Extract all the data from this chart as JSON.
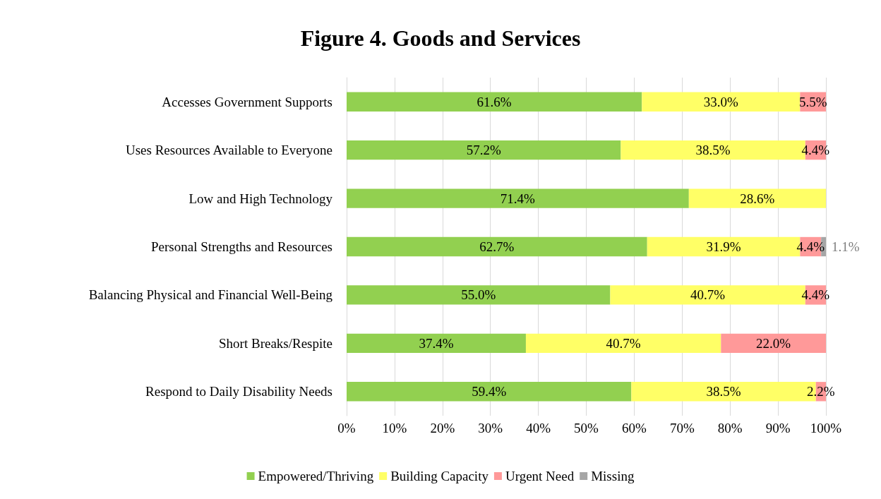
{
  "chart_data": {
    "type": "bar",
    "title": "Figure 4. Goods and Services",
    "orientation": "horizontal",
    "stacked": true,
    "categories": [
      "Accesses Government Supports",
      "Uses Resources Available to Everyone",
      "Low and High Technology",
      "Personal Strengths and Resources",
      "Balancing Physical and Financial Well-Being",
      "Short Breaks/Respite",
      "Respond to Daily Disability Needs"
    ],
    "series": [
      {
        "name": "Empowered/Thriving",
        "color": "#92d050",
        "values": [
          61.6,
          57.2,
          71.4,
          62.7,
          55.0,
          37.4,
          59.4
        ],
        "value_labels": [
          "61.6%",
          "57.2%",
          "71.4%",
          "62.7%",
          "55.0%",
          "37.4%",
          "59.4%"
        ]
      },
      {
        "name": "Building Capacity",
        "color": "#ffff66",
        "values": [
          33.0,
          38.5,
          28.6,
          31.9,
          40.7,
          40.7,
          38.5
        ],
        "value_labels": [
          "33.0%",
          "38.5%",
          "28.6%",
          "31.9%",
          "40.7%",
          "40.7%",
          "38.5%"
        ]
      },
      {
        "name": "Urgent Need",
        "color": "#ff9999",
        "values": [
          5.5,
          4.4,
          null,
          4.4,
          4.4,
          22.0,
          2.2
        ],
        "value_labels": [
          "5.5%",
          "4.4%",
          null,
          "4.4%",
          "4.4%",
          "22.0%",
          "2.2%"
        ]
      },
      {
        "name": "Missing",
        "color": "#a6a6a6",
        "values": [
          null,
          null,
          null,
          1.1,
          null,
          null,
          null
        ],
        "value_labels": [
          null,
          null,
          null,
          "1.1%",
          null,
          null,
          null
        ]
      }
    ],
    "xlim": [
      0,
      100
    ],
    "xticks": [
      {
        "value": 0,
        "label": "0%"
      },
      {
        "value": 10,
        "label": "10%"
      },
      {
        "value": 20,
        "label": "20%"
      },
      {
        "value": 30,
        "label": "30%"
      },
      {
        "value": 40,
        "label": "40%"
      },
      {
        "value": 50,
        "label": "50%"
      },
      {
        "value": 60,
        "label": "60%"
      },
      {
        "value": 70,
        "label": "70%"
      },
      {
        "value": 80,
        "label": "80%"
      },
      {
        "value": 90,
        "label": "90%"
      },
      {
        "value": 100,
        "label": "100%"
      }
    ],
    "grid": "x",
    "legend": "bottom"
  }
}
